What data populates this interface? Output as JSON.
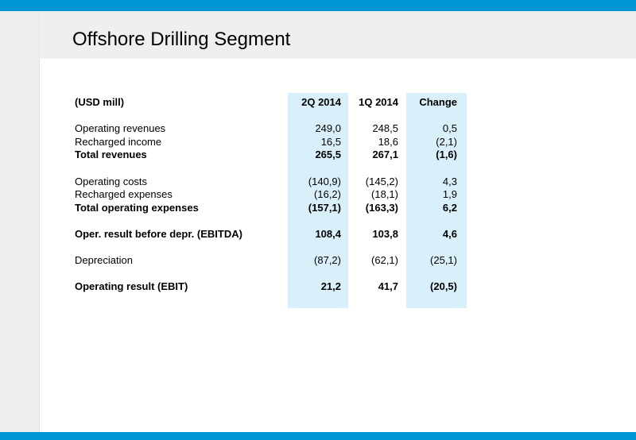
{
  "title": "Offshore Drilling Segment",
  "table": {
    "header": {
      "label": "(USD mill)",
      "col1": "2Q 2014",
      "col2": "1Q 2014",
      "col3": "Change"
    },
    "rows": [
      {
        "label": "Operating revenues",
        "col1": "249,0",
        "col2": "248,5",
        "col3": "0,5",
        "bold": false
      },
      {
        "label": "Recharged income",
        "col1": "16,5",
        "col2": "18,6",
        "col3": "(2,1)",
        "bold": false
      },
      {
        "label": "Total revenues",
        "col1": "265,5",
        "col2": "267,1",
        "col3": "(1,6)",
        "bold": true
      },
      {
        "label": "Operating costs",
        "col1": "(140,9)",
        "col2": "(145,2)",
        "col3": "4,3",
        "bold": false
      },
      {
        "label": "Recharged expenses",
        "col1": "(16,2)",
        "col2": "(18,1)",
        "col3": "1,9",
        "bold": false
      },
      {
        "label": "Total operating expenses",
        "col1": "(157,1)",
        "col2": "(163,3)",
        "col3": "6,2",
        "bold": true
      },
      {
        "label": "Oper. result before depr. (EBITDA)",
        "col1": "108,4",
        "col2": "103,8",
        "col3": "4,6",
        "bold": true
      },
      {
        "label": "Depreciation",
        "col1": "(87,2)",
        "col2": "(62,1)",
        "col3": "(25,1)",
        "bold": false
      },
      {
        "label": "Operating result (EBIT)",
        "col1": "21,2",
        "col2": "41,7",
        "col3": "(20,5)",
        "bold": true
      }
    ]
  },
  "colors": {
    "accent": "#0096d6",
    "highlight_column": "#d9f0fb",
    "side_panel": "#efefed"
  }
}
